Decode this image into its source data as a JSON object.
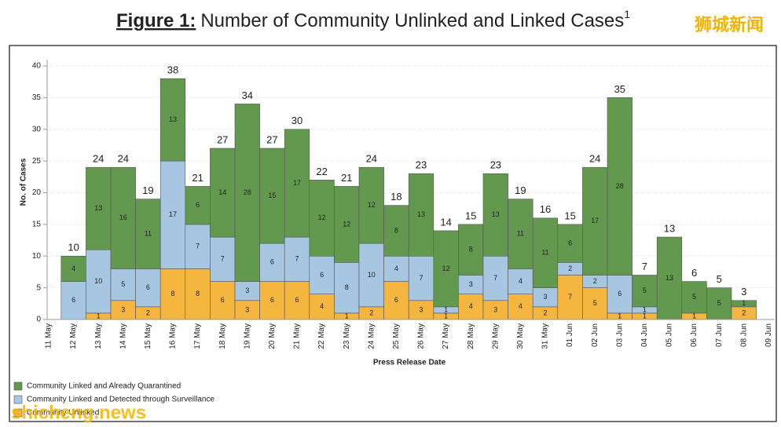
{
  "chart_data": {
    "type": "stacked_bar",
    "figure_label": "Figure 1:",
    "title": "Number of Community Unlinked and Linked Cases",
    "footnote_mark": "1",
    "ylabel": "No. of Cases",
    "xlabel": "Press Release Date",
    "categories": [
      "11 May",
      "12 May",
      "13 May",
      "14 May",
      "15 May",
      "16 May",
      "17 May",
      "18 May",
      "19 May",
      "20 May",
      "21 May",
      "22 May",
      "23 May",
      "24 May",
      "25 May",
      "26 May",
      "27 May",
      "28 May",
      "29 May",
      "30 May",
      "31 May",
      "01 Jun",
      "02 Jun",
      "03 Jun",
      "04 Jun",
      "05 Jun",
      "06 Jun",
      "07 Jun",
      "08 Jun",
      "09 Jun"
    ],
    "series": [
      {
        "name": "Community Unlinked",
        "color": "#f4b63e",
        "values": [
          null,
          null,
          1,
          3,
          2,
          8,
          8,
          6,
          3,
          6,
          6,
          4,
          1,
          2,
          6,
          3,
          1,
          4,
          3,
          4,
          2,
          7,
          5,
          1,
          1,
          null,
          1,
          null,
          2,
          null
        ]
      },
      {
        "name": "Community Linked and Detected through Surveillance",
        "color": "#a6c6e2",
        "values": [
          null,
          6,
          10,
          5,
          6,
          17,
          7,
          7,
          3,
          6,
          7,
          6,
          8,
          10,
          4,
          7,
          1,
          3,
          7,
          4,
          3,
          2,
          2,
          6,
          1,
          null,
          null,
          null,
          null,
          null
        ]
      },
      {
        "name": "Community Linked and Already Quarantined",
        "color": "#62994f",
        "values": [
          null,
          4,
          13,
          16,
          11,
          13,
          6,
          14,
          28,
          15,
          17,
          12,
          12,
          12,
          8,
          13,
          12,
          8,
          13,
          11,
          11,
          6,
          17,
          28,
          5,
          13,
          5,
          5,
          1,
          null
        ]
      }
    ],
    "totals": [
      null,
      10,
      24,
      24,
      19,
      38,
      21,
      27,
      34,
      27,
      30,
      22,
      21,
      24,
      18,
      23,
      14,
      15,
      23,
      19,
      16,
      15,
      24,
      35,
      7,
      13,
      6,
      5,
      3,
      null
    ],
    "ylim": [
      0,
      41
    ],
    "yticks": [
      0,
      5,
      10,
      15,
      20,
      25,
      30,
      35,
      40
    ],
    "grid": true,
    "watermarks": [
      "狮城新闻",
      "shicheng.news"
    ]
  }
}
